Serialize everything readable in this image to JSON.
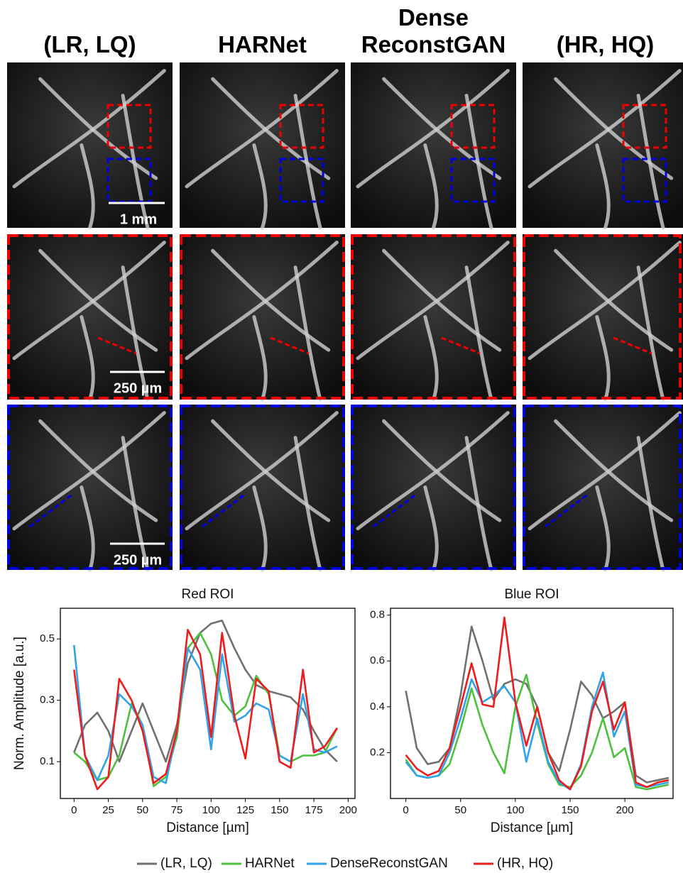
{
  "figure": {
    "columns": [
      "(LR, LQ)",
      "HARNet",
      "Dense ReconstGAN",
      "(HR, HQ)"
    ],
    "scale_labels": [
      "1 mm",
      "250 µm",
      "250 µm"
    ]
  },
  "chart_data": [
    {
      "type": "line",
      "title": "Red ROI",
      "xlabel": "Distance [µm]",
      "ylabel": "Norm. Amplitude [a.u.]",
      "x": [
        0,
        8,
        17,
        25,
        33,
        42,
        50,
        58,
        67,
        75,
        83,
        92,
        100,
        108,
        117,
        125,
        133,
        142,
        150,
        158,
        167,
        175,
        183,
        192
      ],
      "xlim": [
        -10,
        205
      ],
      "xticks": [
        0,
        25,
        50,
        75,
        100,
        125,
        150,
        175,
        200
      ],
      "ylim": [
        -0.02,
        0.6
      ],
      "yticks": [
        0.1,
        0.3,
        0.5
      ],
      "grid": false,
      "series": [
        {
          "name": "(LR, LQ)",
          "color": "#707070",
          "values": [
            0.13,
            0.22,
            0.26,
            0.2,
            0.1,
            0.2,
            0.29,
            0.2,
            0.1,
            0.22,
            0.42,
            0.52,
            0.55,
            0.56,
            0.47,
            0.4,
            0.35,
            0.33,
            0.32,
            0.31,
            0.27,
            0.2,
            0.14,
            0.1
          ]
        },
        {
          "name": "HARNet",
          "color": "#4cc23c",
          "values": [
            0.13,
            0.1,
            0.04,
            0.05,
            0.12,
            0.29,
            0.22,
            0.02,
            0.05,
            0.18,
            0.47,
            0.52,
            0.45,
            0.3,
            0.25,
            0.28,
            0.38,
            0.32,
            0.12,
            0.1,
            0.12,
            0.12,
            0.13,
            0.21
          ]
        },
        {
          "name": "DenseReconstGAN",
          "color": "#2fa4ea",
          "values": [
            0.48,
            0.12,
            0.04,
            0.12,
            0.32,
            0.28,
            0.22,
            0.05,
            0.03,
            0.2,
            0.47,
            0.4,
            0.14,
            0.45,
            0.23,
            0.25,
            0.29,
            0.27,
            0.12,
            0.1,
            0.32,
            0.14,
            0.13,
            0.15
          ]
        },
        {
          "name": "(HR, HQ)",
          "color": "#ee1c1c",
          "values": [
            0.4,
            0.12,
            0.01,
            0.05,
            0.37,
            0.3,
            0.2,
            0.03,
            0.06,
            0.2,
            0.53,
            0.45,
            0.18,
            0.52,
            0.25,
            0.11,
            0.37,
            0.33,
            0.1,
            0.08,
            0.4,
            0.13,
            0.15,
            0.21
          ]
        }
      ]
    },
    {
      "type": "line",
      "title": "Blue ROI",
      "xlabel": "Distance [µm]",
      "x": [
        0,
        10,
        20,
        30,
        40,
        50,
        60,
        70,
        80,
        90,
        100,
        110,
        120,
        130,
        140,
        150,
        160,
        170,
        180,
        190,
        200,
        210,
        220,
        230,
        240
      ],
      "xlim": [
        -14,
        244
      ],
      "xticks": [
        0,
        50,
        100,
        150,
        200
      ],
      "ylim": [
        0.0,
        0.83
      ],
      "yticks": [
        0.2,
        0.4,
        0.6,
        0.8
      ],
      "grid": false,
      "series": [
        {
          "color": "#707070",
          "values": [
            0.47,
            0.22,
            0.15,
            0.16,
            0.22,
            0.45,
            0.75,
            0.6,
            0.43,
            0.5,
            0.52,
            0.5,
            0.4,
            0.2,
            0.12,
            0.3,
            0.51,
            0.45,
            0.35,
            0.38,
            0.42,
            0.1,
            0.07,
            0.08,
            0.09
          ]
        },
        {
          "color": "#4cc23c",
          "values": [
            0.17,
            0.1,
            0.09,
            0.1,
            0.15,
            0.3,
            0.48,
            0.32,
            0.2,
            0.11,
            0.4,
            0.54,
            0.33,
            0.15,
            0.06,
            0.05,
            0.1,
            0.2,
            0.35,
            0.18,
            0.22,
            0.05,
            0.04,
            0.05,
            0.06
          ]
        },
        {
          "color": "#2fa4ea",
          "values": [
            0.16,
            0.1,
            0.09,
            0.1,
            0.2,
            0.35,
            0.52,
            0.42,
            0.45,
            0.49,
            0.42,
            0.16,
            0.35,
            0.16,
            0.07,
            0.04,
            0.15,
            0.4,
            0.55,
            0.27,
            0.38,
            0.06,
            0.05,
            0.06,
            0.07
          ]
        },
        {
          "color": "#ee1c1c",
          "values": [
            0.19,
            0.13,
            0.1,
            0.12,
            0.22,
            0.4,
            0.59,
            0.41,
            0.4,
            0.79,
            0.42,
            0.23,
            0.4,
            0.2,
            0.08,
            0.04,
            0.14,
            0.38,
            0.51,
            0.3,
            0.42,
            0.07,
            0.05,
            0.07,
            0.08
          ]
        }
      ]
    }
  ]
}
